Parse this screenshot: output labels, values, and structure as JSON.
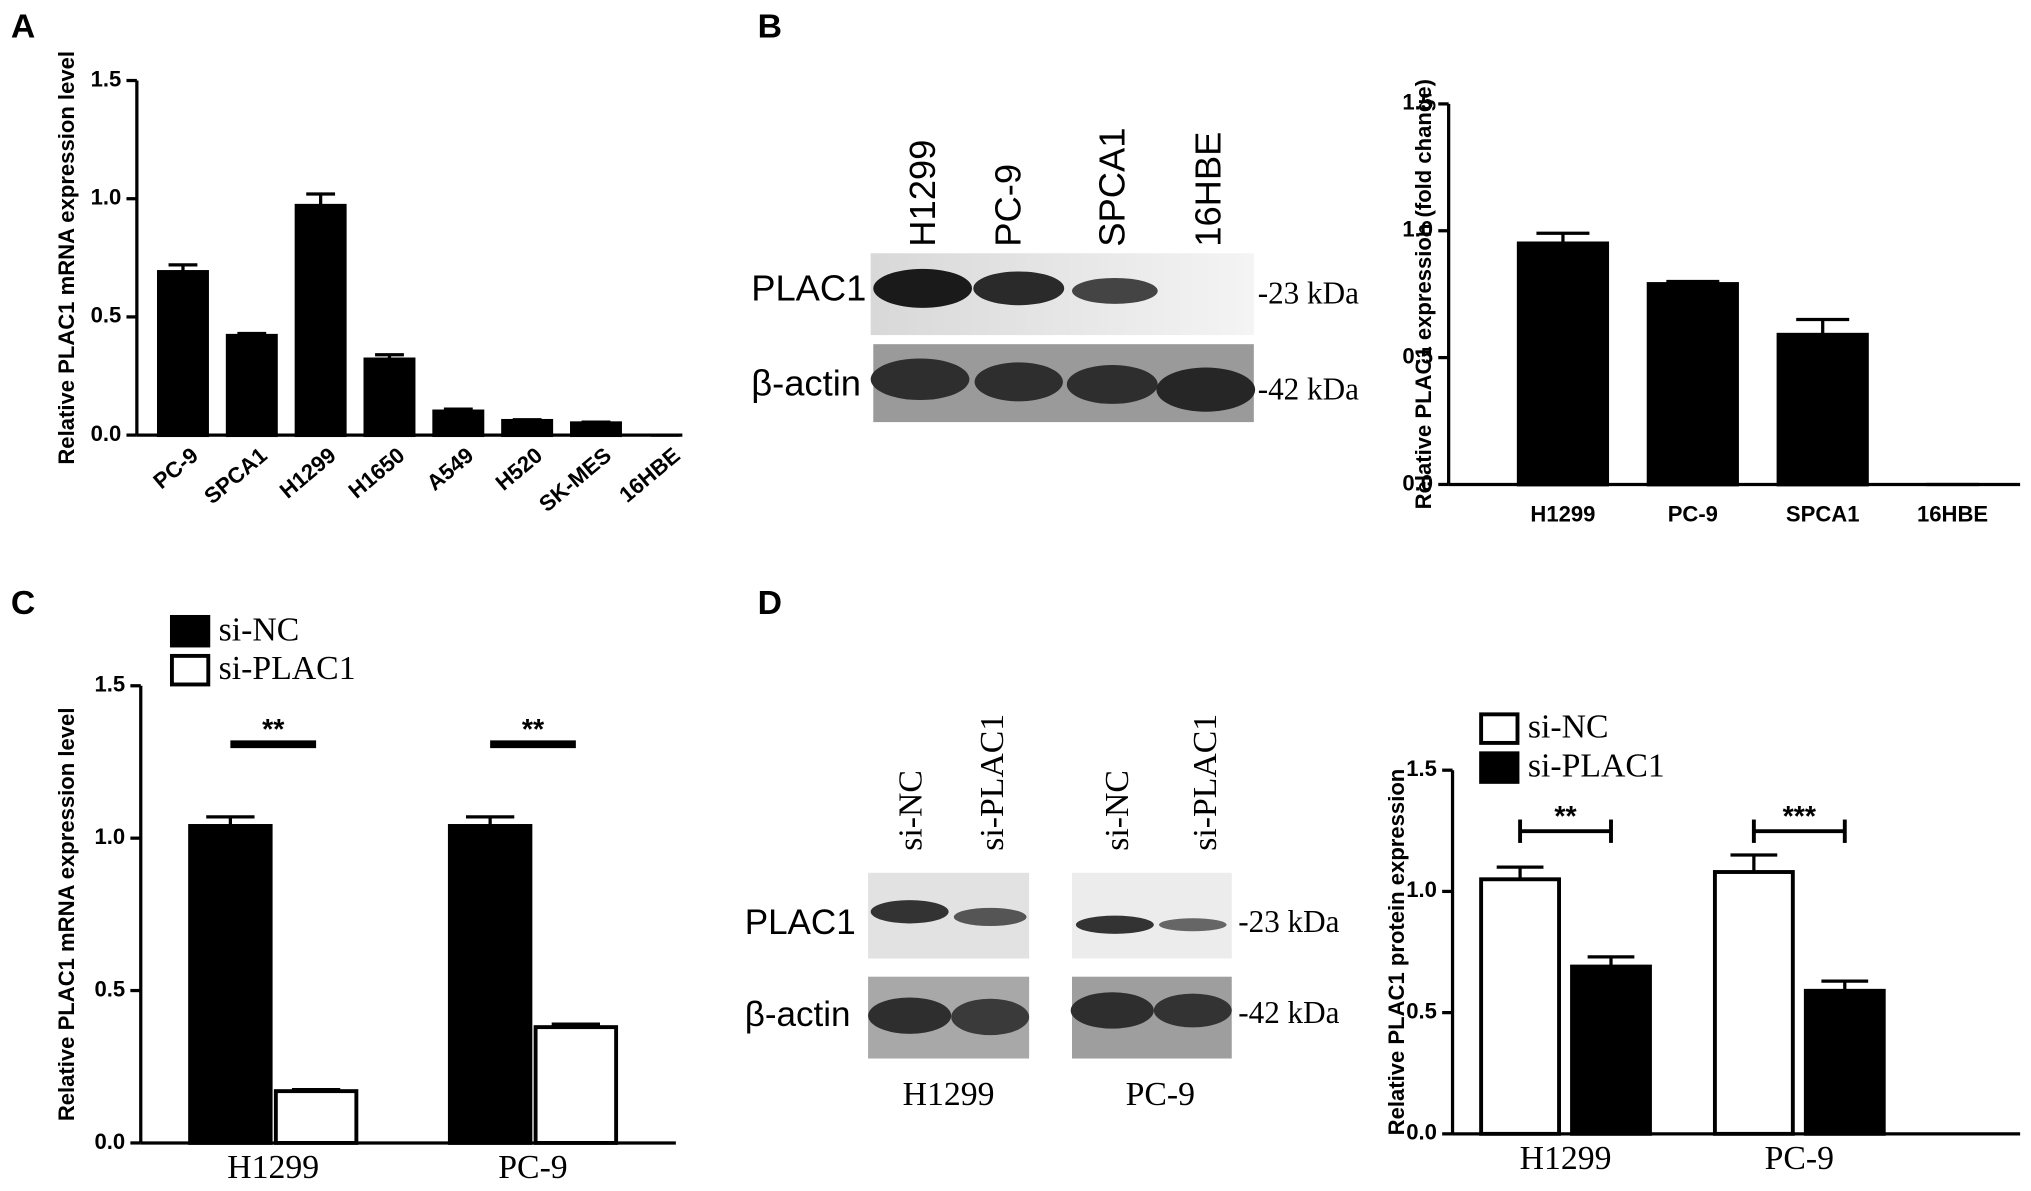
{
  "panels": [
    "A",
    "B",
    "C",
    "D"
  ],
  "blots": [
    {
      "lanes": [
        "H1299",
        "PC-9",
        "SPCA1",
        "16HBE"
      ],
      "rows": [
        "PLAC1",
        "β-actin"
      ],
      "markers": [
        "-23 kDa",
        "-42 kDa"
      ]
    },
    {
      "lanes": [
        "si-NC",
        "si-PLAC1",
        "si-NC",
        "si-PLAC1"
      ],
      "rows": [
        "PLAC1",
        "β-actin"
      ],
      "markers": [
        "-23 kDa",
        "-42 kDa"
      ],
      "groups": [
        "H1299",
        "PC-9"
      ]
    }
  ],
  "chart_data": [
    {
      "type": "bar",
      "ylabel": "Relative PLAC1 mRNA expression level",
      "categories": [
        "PC-9",
        "SPCA1",
        "H1299",
        "H1650",
        "A549",
        "H520",
        "SK-MES",
        "16HBE"
      ],
      "values": [
        0.69,
        0.42,
        0.97,
        0.32,
        0.1,
        0.06,
        0.05,
        0
      ],
      "errors": [
        0.03,
        0.01,
        0.05,
        0.02,
        0.01,
        0.005,
        0.005,
        0
      ],
      "color": "#000000",
      "ylim": [
        0,
        1.5
      ],
      "yticks": [
        {
          "value": 0,
          "label": "0.0"
        },
        0.5,
        {
          "value": 1,
          "label": "1.0"
        },
        1.5
      ]
    },
    {
      "type": "bar",
      "ylabel": "Relative PLAC1  expression (fold change)",
      "categories": [
        "H1299",
        "PC-9",
        "SPCA1",
        "16HBE"
      ],
      "values": [
        0.95,
        0.79,
        0.59,
        0
      ],
      "errors": [
        0.04,
        0.01,
        0.06,
        0
      ],
      "color": "#000000",
      "ylim": [
        0,
        1.5
      ],
      "yticks": [
        {
          "value": 0,
          "label": "0.0"
        },
        0.5,
        {
          "value": 1,
          "label": "1.0"
        },
        1.5
      ]
    },
    {
      "type": "grouped_bar",
      "ylabel": "Relative PLAC1 mRNA expression level",
      "categories": [
        "H1299",
        "PC-9"
      ],
      "series": [
        {
          "name": "si-NC",
          "color": "#000000",
          "values": [
            1.04,
            1.04
          ],
          "errors": [
            0.03,
            0.03
          ]
        },
        {
          "name": "si-PLAC1",
          "color": "#ffffff",
          "values": [
            0.17,
            0.38
          ],
          "errors": [
            0.005,
            0.01
          ]
        }
      ],
      "significance": [
        "**",
        "**"
      ],
      "ylim": [
        0,
        1.5
      ],
      "yticks": [
        {
          "value": 0,
          "label": "0.0"
        },
        0.5,
        {
          "value": 1,
          "label": "1.0"
        },
        1.5
      ]
    },
    {
      "type": "grouped_bar",
      "ylabel": "Relative PLAC1 protein expression",
      "categories": [
        "H1299",
        "PC-9"
      ],
      "series": [
        {
          "name": "si-NC",
          "color": "#ffffff",
          "values": [
            1.05,
            1.08
          ],
          "errors": [
            0.05,
            0.07
          ]
        },
        {
          "name": "si-PLAC1",
          "color": "#000000",
          "values": [
            0.69,
            0.59
          ],
          "errors": [
            0.04,
            0.04
          ]
        }
      ],
      "significance": [
        "**",
        "***"
      ],
      "ylim": [
        0,
        1.5
      ],
      "yticks": [
        {
          "value": 0,
          "label": "0.0"
        },
        0.5,
        {
          "value": 1,
          "label": "1.0"
        },
        1.5
      ]
    }
  ]
}
